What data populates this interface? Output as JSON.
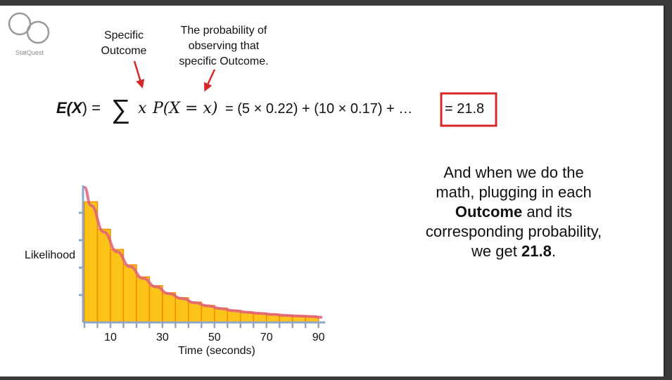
{
  "logo": {
    "text": "StatQuest"
  },
  "annotations": {
    "specific_outcome": [
      "Specific",
      "Outcome"
    ],
    "probability_note": [
      "The probability of",
      "observing that",
      "specific Outcome."
    ]
  },
  "equation": {
    "lhs": "E(",
    "lhs_var": "X",
    "lhs_close": ") =",
    "sigma": "∑",
    "x_term": "x",
    "prob_term": "P(X = x)",
    "expansion": "= (5 × 0.22) + (10 × 0.17) + …",
    "result": "= 21.8",
    "highlight_color": "#d62828"
  },
  "narration": {
    "line1": "And when we do the",
    "line2": "math, plugging in each",
    "line3_bold": "Outcome",
    "line3_rest": " and its",
    "line4": "corresponding probability,",
    "line5_pre": "we get ",
    "line5_bold": "21.8",
    "line5_end": "."
  },
  "chart_data": {
    "type": "bar",
    "xlabel": "Time (seconds)",
    "ylabel": "Likelihood",
    "x_tick_labels": [
      "10",
      "30",
      "50",
      "70",
      "90"
    ],
    "x_tick_values": [
      10,
      30,
      50,
      70,
      90
    ],
    "xlim": [
      0,
      92
    ],
    "ylim": [
      0,
      0.25
    ],
    "bin_width": 5,
    "bin_starts": [
      0,
      5,
      10,
      15,
      20,
      25,
      30,
      35,
      40,
      45,
      50,
      55,
      60,
      65,
      70,
      75,
      80,
      85
    ],
    "values": [
      0.22,
      0.17,
      0.133,
      0.105,
      0.083,
      0.067,
      0.054,
      0.045,
      0.037,
      0.031,
      0.026,
      0.022,
      0.019,
      0.017,
      0.015,
      0.013,
      0.012,
      0.011
    ],
    "curve": "exponential decay overlay",
    "bar_color": "#fcc419",
    "bar_edge_color": "#f08c00",
    "curve_color": "#e0607a"
  }
}
